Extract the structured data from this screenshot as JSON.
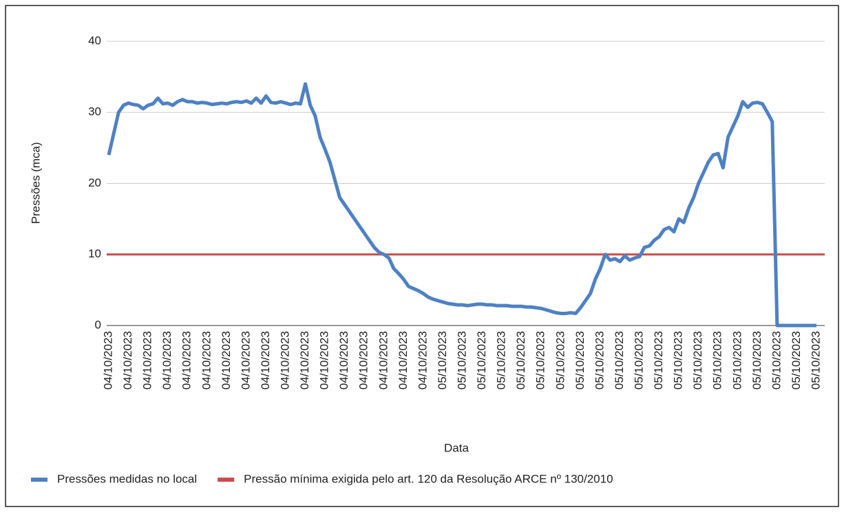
{
  "chart_data": {
    "type": "line",
    "x_label": "Data",
    "y_label": "Pressões (mca)",
    "categories": [
      "04/10/2023",
      null,
      null,
      null,
      "04/10/2023",
      null,
      null,
      null,
      "04/10/2023",
      null,
      null,
      null,
      "04/10/2023",
      null,
      null,
      null,
      "04/10/2023",
      null,
      null,
      null,
      "04/10/2023",
      null,
      null,
      null,
      "04/10/2023",
      null,
      null,
      null,
      "04/10/2023",
      null,
      null,
      null,
      "04/10/2023",
      null,
      null,
      null,
      "04/10/2023",
      null,
      null,
      null,
      "04/10/2023",
      null,
      null,
      null,
      "04/10/2023",
      null,
      null,
      null,
      "04/10/2023",
      null,
      null,
      null,
      "04/10/2023",
      null,
      null,
      null,
      "04/10/2023",
      null,
      null,
      null,
      "04/10/2023",
      null,
      null,
      null,
      "04/10/2023",
      null,
      null,
      null,
      "05/10/2023",
      null,
      null,
      null,
      "05/10/2023",
      null,
      null,
      null,
      "05/10/2023",
      null,
      null,
      null,
      "05/10/2023",
      null,
      null,
      null,
      "05/10/2023",
      null,
      null,
      null,
      "05/10/2023",
      null,
      null,
      null,
      "05/10/2023",
      null,
      null,
      null,
      "05/10/2023",
      null,
      null,
      null,
      "05/10/2023",
      null,
      null,
      null,
      "05/10/2023",
      null,
      null,
      null,
      "05/10/2023",
      null,
      null,
      null,
      "05/10/2023",
      null,
      null,
      null,
      "05/10/2023",
      null,
      null,
      null,
      "05/10/2023",
      null,
      null,
      null,
      "05/10/2023",
      null,
      null,
      null,
      "05/10/2023",
      null,
      null,
      null,
      "05/10/2023",
      null,
      null,
      null,
      "05/10/2023",
      null,
      null,
      null,
      "05/10/2023",
      null,
      null,
      null,
      "05/10/2023"
    ],
    "series": [
      {
        "name": "Pressões medidas no local",
        "color": "#4e81c4",
        "values": [
          24,
          27,
          30,
          31,
          31.3,
          31.1,
          31,
          30.5,
          31,
          31.2,
          32,
          31.2,
          31.3,
          31,
          31.5,
          31.8,
          31.5,
          31.5,
          31.3,
          31.4,
          31.3,
          31.1,
          31.2,
          31.3,
          31.2,
          31.4,
          31.5,
          31.4,
          31.6,
          31.3,
          32,
          31.3,
          32.3,
          31.4,
          31.3,
          31.5,
          31.3,
          31.1,
          31.3,
          31.2,
          34,
          31,
          29.5,
          26.5,
          24.8,
          23,
          20.5,
          18,
          17,
          16,
          15,
          14,
          13,
          12,
          11,
          10.3,
          10,
          9.5,
          8,
          7.3,
          6.5,
          5.5,
          5.2,
          4.9,
          4.5,
          4,
          3.7,
          3.5,
          3.3,
          3.1,
          3,
          2.9,
          2.9,
          2.8,
          2.9,
          3,
          3,
          2.9,
          2.9,
          2.8,
          2.8,
          2.8,
          2.7,
          2.7,
          2.7,
          2.6,
          2.6,
          2.5,
          2.4,
          2.2,
          2,
          1.8,
          1.7,
          1.7,
          1.8,
          1.7,
          2.5,
          3.5,
          4.5,
          6.5,
          8,
          10,
          9.2,
          9.4,
          9,
          9.8,
          9.2,
          9.5,
          9.7,
          11,
          11.2,
          12,
          12.5,
          13.5,
          13.8,
          13.2,
          15,
          14.5,
          16.5,
          18,
          20,
          21.5,
          23,
          24,
          24.2,
          22.2,
          26.5,
          28,
          29.5,
          31.5,
          30.7,
          31.3,
          31.4,
          31.2,
          30,
          28.7,
          0,
          0,
          0,
          0,
          0,
          0,
          0,
          0,
          0
        ]
      }
    ],
    "hlines": [
      {
        "name": "Pressão mínima exigida pelo art. 120 da Resolução ARCE nº 130/2010",
        "color": "#cc4b4b",
        "value": 10
      }
    ],
    "ylim": [
      0,
      40
    ],
    "yticks": [
      0,
      10,
      20,
      30,
      40
    ],
    "grid": true,
    "legend": "bottom"
  }
}
